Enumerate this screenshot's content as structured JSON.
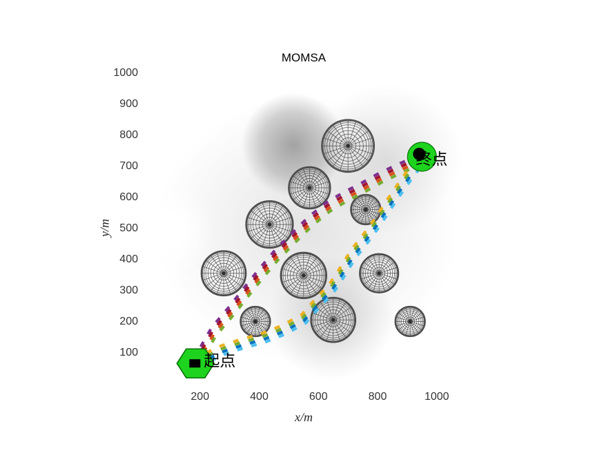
{
  "title": "MOMSA",
  "axes": {
    "xlabel": "x/m",
    "ylabel": "y/m",
    "xticks": [
      200,
      400,
      600,
      800,
      1000
    ],
    "yticks": [
      100,
      200,
      300,
      400,
      500,
      600,
      700,
      800,
      900,
      1000
    ]
  },
  "chart_data": {
    "type": "scatter",
    "title": "MOMSA",
    "xlabel": "x/m",
    "ylabel": "y/m",
    "xlim": [
      0,
      1100
    ],
    "ylim": [
      0,
      1050
    ],
    "grid": false,
    "legend": "none",
    "background": "grayscale threat-probability shading blobs",
    "start_point": {
      "x": 185,
      "y": 65,
      "label": "起点",
      "marker": "green-hexagon-with-black-square"
    },
    "end_point": {
      "x": 950,
      "y": 730,
      "label": "终点",
      "marker": "green-circle-with-black-dot"
    },
    "obstacles": [
      {
        "x": 700,
        "y": 765,
        "r": 88
      },
      {
        "x": 570,
        "y": 630,
        "r": 70
      },
      {
        "x": 435,
        "y": 512,
        "r": 79
      },
      {
        "x": 760,
        "y": 560,
        "r": 50
      },
      {
        "x": 280,
        "y": 355,
        "r": 75
      },
      {
        "x": 550,
        "y": 348,
        "r": 77
      },
      {
        "x": 805,
        "y": 355,
        "r": 65
      },
      {
        "x": 387,
        "y": 200,
        "r": 50
      },
      {
        "x": 650,
        "y": 205,
        "r": 75
      },
      {
        "x": 910,
        "y": 200,
        "r": 50
      }
    ],
    "paths": [
      {
        "name": "path-1",
        "color": "#7E2F8E",
        "style": "dashed",
        "route": "middle",
        "points": [
          [
            185,
            65
          ],
          [
            247,
            168
          ],
          [
            306,
            234
          ],
          [
            352,
            290
          ],
          [
            399,
            346
          ],
          [
            457,
            412
          ],
          [
            515,
            468
          ],
          [
            574,
            523
          ],
          [
            632,
            568
          ],
          [
            690,
            601
          ],
          [
            749,
            630
          ],
          [
            807,
            661
          ],
          [
            870,
            690
          ],
          [
            924,
            712
          ],
          [
            950,
            730
          ]
        ]
      },
      {
        "name": "path-2",
        "color": "#A2142F",
        "style": "dashed",
        "route": "middle",
        "points": [
          [
            185,
            65
          ],
          [
            247,
            168
          ],
          [
            306,
            234
          ],
          [
            352,
            290
          ],
          [
            399,
            346
          ],
          [
            457,
            412
          ],
          [
            515,
            468
          ],
          [
            574,
            523
          ],
          [
            632,
            568
          ],
          [
            690,
            601
          ],
          [
            749,
            630
          ],
          [
            807,
            661
          ],
          [
            870,
            690
          ],
          [
            924,
            712
          ],
          [
            950,
            730
          ]
        ]
      },
      {
        "name": "path-3",
        "color": "#D95319",
        "style": "dashed",
        "route": "middle",
        "points": [
          [
            185,
            65
          ],
          [
            247,
            168
          ],
          [
            306,
            234
          ],
          [
            352,
            290
          ],
          [
            399,
            346
          ],
          [
            457,
            412
          ],
          [
            515,
            468
          ],
          [
            574,
            523
          ],
          [
            632,
            568
          ],
          [
            690,
            601
          ],
          [
            749,
            630
          ],
          [
            807,
            661
          ],
          [
            870,
            690
          ],
          [
            924,
            712
          ],
          [
            950,
            730
          ]
        ]
      },
      {
        "name": "path-4",
        "color": "#77AC30",
        "style": "dashed",
        "route": "middle",
        "points": [
          [
            185,
            65
          ],
          [
            247,
            168
          ],
          [
            306,
            234
          ],
          [
            352,
            290
          ],
          [
            399,
            346
          ],
          [
            457,
            412
          ],
          [
            515,
            468
          ],
          [
            574,
            523
          ],
          [
            632,
            568
          ],
          [
            690,
            601
          ],
          [
            749,
            630
          ],
          [
            807,
            661
          ],
          [
            870,
            690
          ],
          [
            924,
            712
          ],
          [
            950,
            730
          ]
        ]
      },
      {
        "name": "path-5",
        "color": "#EDB120",
        "style": "dashed",
        "route": "right",
        "points": [
          [
            185,
            65
          ],
          [
            271,
            106
          ],
          [
            341,
            128
          ],
          [
            411,
            146
          ],
          [
            480,
            172
          ],
          [
            550,
            208
          ],
          [
            596,
            258
          ],
          [
            644,
            306
          ],
          [
            679,
            357
          ],
          [
            718,
            417
          ],
          [
            760,
            468
          ],
          [
            802,
            523
          ],
          [
            835,
            572
          ],
          [
            870,
            621
          ],
          [
            905,
            668
          ],
          [
            935,
            706
          ],
          [
            950,
            730
          ]
        ]
      },
      {
        "name": "path-6",
        "color": "#77AC30",
        "style": "dashed",
        "route": "right",
        "points": [
          [
            185,
            65
          ],
          [
            271,
            106
          ],
          [
            341,
            128
          ],
          [
            411,
            146
          ],
          [
            480,
            172
          ],
          [
            550,
            208
          ],
          [
            596,
            258
          ],
          [
            644,
            306
          ],
          [
            679,
            357
          ],
          [
            718,
            417
          ],
          [
            760,
            468
          ],
          [
            802,
            523
          ],
          [
            835,
            572
          ],
          [
            870,
            621
          ],
          [
            905,
            668
          ],
          [
            935,
            706
          ],
          [
            950,
            730
          ]
        ]
      },
      {
        "name": "path-7",
        "color": "#0072BD",
        "style": "dashed",
        "route": "right",
        "points": [
          [
            185,
            65
          ],
          [
            271,
            106
          ],
          [
            341,
            128
          ],
          [
            411,
            146
          ],
          [
            480,
            172
          ],
          [
            550,
            208
          ],
          [
            596,
            258
          ],
          [
            644,
            306
          ],
          [
            679,
            357
          ],
          [
            718,
            417
          ],
          [
            760,
            468
          ],
          [
            802,
            523
          ],
          [
            835,
            572
          ],
          [
            870,
            621
          ],
          [
            905,
            668
          ],
          [
            935,
            706
          ],
          [
            950,
            730
          ]
        ]
      },
      {
        "name": "path-8",
        "color": "#4DBEEE",
        "style": "dashed",
        "route": "right",
        "points": [
          [
            185,
            65
          ],
          [
            271,
            106
          ],
          [
            341,
            128
          ],
          [
            411,
            146
          ],
          [
            480,
            172
          ],
          [
            550,
            208
          ],
          [
            596,
            258
          ],
          [
            644,
            306
          ],
          [
            679,
            357
          ],
          [
            718,
            417
          ],
          [
            760,
            468
          ],
          [
            802,
            523
          ],
          [
            835,
            572
          ],
          [
            870,
            621
          ],
          [
            905,
            668
          ],
          [
            935,
            706
          ],
          [
            950,
            730
          ]
        ]
      }
    ],
    "colors": {
      "marker_green": "#1ED31E",
      "obstacle_wire": "#4D4D4D"
    }
  }
}
